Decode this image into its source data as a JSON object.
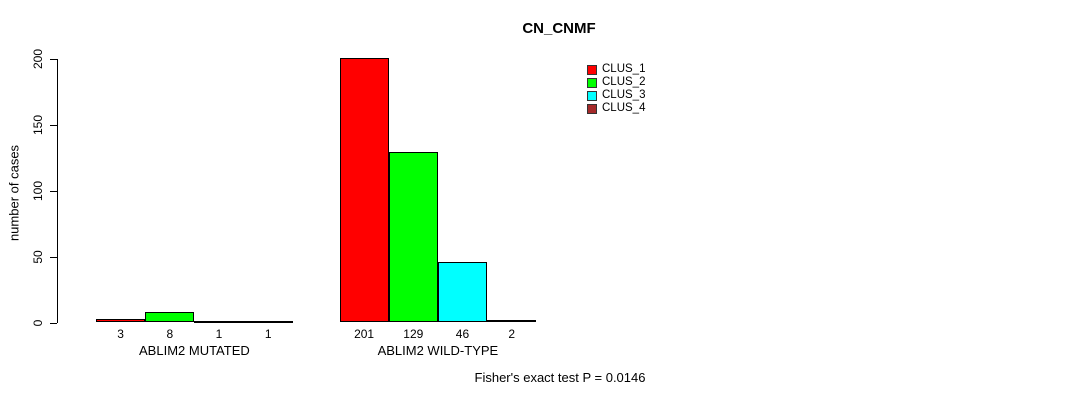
{
  "chart_data": {
    "type": "bar",
    "title": "CN_CNMF",
    "ylabel": "number of cases",
    "xlabel": "",
    "ylim": [
      0,
      200
    ],
    "yticks": [
      0,
      50,
      100,
      150,
      200
    ],
    "grid": false,
    "bar_border_color": "#000000",
    "legend": {
      "position": "top-right",
      "entries": [
        {
          "label": "CLUS_1",
          "color": "#FF0000"
        },
        {
          "label": "CLUS_2",
          "color": "#00FF00"
        },
        {
          "label": "CLUS_3",
          "color": "#00FFFF"
        },
        {
          "label": "CLUS_4",
          "color": "#A52A2A"
        }
      ]
    },
    "categories": [
      "ABLIM2 MUTATED",
      "ABLIM2 WILD-TYPE"
    ],
    "groups": [
      {
        "label": "ABLIM2 MUTATED",
        "values": [
          3,
          8,
          1,
          1
        ]
      },
      {
        "label": "ABLIM2 WILD-TYPE",
        "values": [
          201,
          129,
          46,
          2
        ]
      }
    ],
    "bar_value_labels": [
      [
        "3",
        "8",
        "1",
        "1"
      ],
      [
        "201",
        "129",
        "46",
        "2"
      ]
    ],
    "annotation": "Fisher's exact test P = 0.0146"
  }
}
